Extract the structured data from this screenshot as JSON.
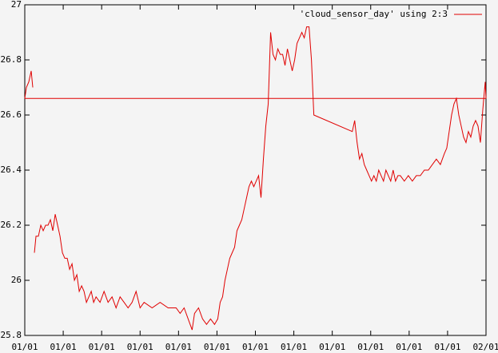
{
  "chart_data": {
    "type": "line",
    "x": [
      0,
      2,
      5,
      8,
      10,
      11,
      12,
      14,
      17,
      20,
      23,
      26,
      29,
      32,
      35,
      38,
      41,
      44,
      47,
      50,
      53,
      56,
      59,
      62,
      65,
      68,
      71,
      74,
      77,
      80,
      83,
      86,
      89,
      94,
      99,
      104,
      109,
      114,
      119,
      124,
      129,
      134,
      139,
      144,
      149,
      159,
      169,
      179,
      189,
      194,
      199,
      204,
      209,
      212,
      217,
      222,
      227,
      232,
      237,
      241,
      244,
      247,
      250,
      253,
      256,
      259,
      262,
      265,
      268,
      271,
      274,
      277,
      280,
      283,
      286,
      289,
      292,
      295,
      298,
      301,
      304,
      307,
      310,
      313,
      316,
      319,
      322,
      325,
      328,
      331,
      334,
      337,
      340,
      343,
      346,
      349,
      352,
      355,
      358,
      361,
      409,
      412,
      415,
      418,
      421,
      424,
      427,
      430,
      433,
      436,
      439,
      442,
      445,
      448,
      451,
      454,
      457,
      460,
      463,
      466,
      469,
      474,
      479,
      484,
      489,
      494,
      499,
      504,
      509,
      514,
      519,
      524,
      527,
      530,
      533,
      536,
      539,
      542,
      545,
      548,
      551,
      554,
      557,
      560,
      563,
      566,
      569,
      572,
      575,
      576
    ],
    "series": [
      {
        "name": "'cloud_sensor_day' using 2:3",
        "color": "#e00000",
        "values": [
          26.66,
          26.7,
          26.72,
          26.76,
          26.7,
          null,
          26.1,
          26.16,
          26.16,
          26.2,
          26.18,
          26.2,
          26.2,
          26.22,
          26.18,
          26.24,
          26.2,
          26.16,
          26.1,
          26.08,
          26.08,
          26.04,
          26.06,
          26.0,
          26.02,
          25.96,
          25.98,
          25.96,
          25.92,
          25.94,
          25.96,
          25.92,
          25.94,
          25.92,
          25.96,
          25.92,
          25.94,
          25.9,
          25.94,
          25.92,
          25.9,
          25.92,
          25.96,
          25.9,
          25.92,
          25.9,
          25.92,
          25.9,
          25.9,
          25.88,
          25.9,
          25.86,
          25.82,
          25.88,
          25.9,
          25.86,
          25.84,
          25.86,
          25.84,
          25.86,
          25.92,
          25.94,
          26.0,
          26.04,
          26.08,
          26.1,
          26.12,
          26.18,
          26.2,
          26.22,
          26.26,
          26.3,
          26.34,
          26.36,
          26.34,
          26.36,
          26.38,
          26.3,
          26.44,
          26.56,
          26.64,
          26.9,
          26.82,
          26.8,
          26.84,
          26.82,
          26.82,
          26.78,
          26.84,
          26.8,
          26.76,
          26.8,
          26.86,
          26.88,
          26.9,
          26.88,
          26.92,
          26.92,
          26.8,
          26.6,
          26.54,
          26.58,
          26.5,
          26.44,
          26.46,
          26.42,
          26.4,
          26.38,
          26.36,
          26.38,
          26.36,
          26.4,
          26.38,
          26.36,
          26.4,
          26.38,
          26.36,
          26.4,
          26.36,
          26.38,
          26.38,
          26.36,
          26.38,
          26.36,
          26.38,
          26.38,
          26.4,
          26.4,
          26.42,
          26.44,
          26.42,
          26.46,
          26.48,
          26.54,
          26.6,
          26.64,
          26.66,
          26.6,
          26.56,
          26.52,
          26.5,
          26.54,
          26.52,
          26.56,
          26.58,
          26.56,
          26.5,
          26.62,
          26.72,
          26.66
        ]
      }
    ],
    "hline": 26.66,
    "xlim": [
      0,
      576
    ],
    "xticks": [
      {
        "value": 0,
        "label": "01/01"
      },
      {
        "value": 48,
        "label": "01/01"
      },
      {
        "value": 96,
        "label": "01/01"
      },
      {
        "value": 144,
        "label": "01/01"
      },
      {
        "value": 192,
        "label": "01/01"
      },
      {
        "value": 240,
        "label": "01/01"
      },
      {
        "value": 288,
        "label": "01/01"
      },
      {
        "value": 336,
        "label": "01/01"
      },
      {
        "value": 384,
        "label": "01/01"
      },
      {
        "value": 432,
        "label": "01/01"
      },
      {
        "value": 480,
        "label": "01/01"
      },
      {
        "value": 528,
        "label": "01/01"
      },
      {
        "value": 576,
        "label": "02/01"
      }
    ],
    "ylim": [
      25.8,
      27
    ],
    "yticks": [
      25.8,
      26,
      26.2,
      26.4,
      26.6,
      26.8,
      27
    ],
    "legend": "top-right"
  }
}
